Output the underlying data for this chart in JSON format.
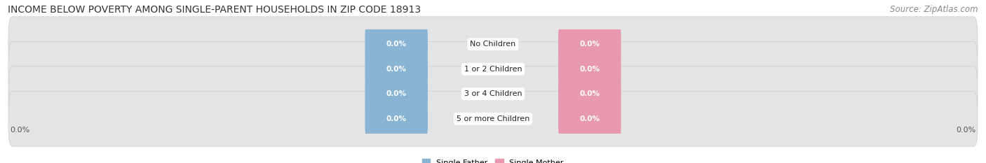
{
  "title": "INCOME BELOW POVERTY AMONG SINGLE-PARENT HOUSEHOLDS IN ZIP CODE 18913",
  "source": "Source: ZipAtlas.com",
  "categories": [
    "No Children",
    "1 or 2 Children",
    "3 or 4 Children",
    "5 or more Children"
  ],
  "single_father_values": [
    0.0,
    0.0,
    0.0,
    0.0
  ],
  "single_mother_values": [
    0.0,
    0.0,
    0.0,
    0.0
  ],
  "father_color": "#8ab4d4",
  "mother_color": "#e899b0",
  "bar_bg_color": "#e4e4e4",
  "bar_bg_border": "#cccccc",
  "title_fontsize": 10,
  "source_fontsize": 8.5,
  "label_fontsize": 8,
  "value_fontsize": 7.5,
  "tick_fontsize": 8,
  "background_color": "#ffffff",
  "legend_father": "Single Father",
  "legend_mother": "Single Mother"
}
